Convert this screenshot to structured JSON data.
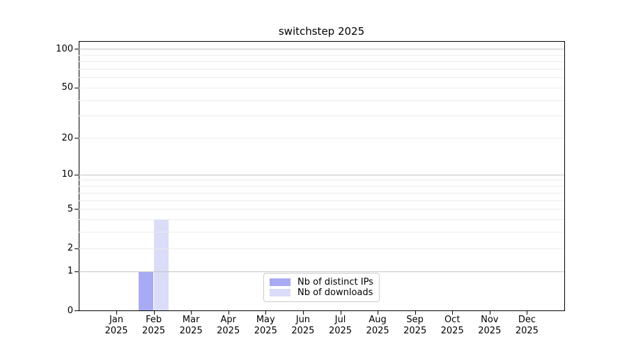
{
  "chart_data": {
    "type": "bar",
    "title": "switchstep 2025",
    "categories": [
      {
        "month": "Jan",
        "year": "2025"
      },
      {
        "month": "Feb",
        "year": "2025"
      },
      {
        "month": "Mar",
        "year": "2025"
      },
      {
        "month": "Apr",
        "year": "2025"
      },
      {
        "month": "May",
        "year": "2025"
      },
      {
        "month": "Jun",
        "year": "2025"
      },
      {
        "month": "Jul",
        "year": "2025"
      },
      {
        "month": "Aug",
        "year": "2025"
      },
      {
        "month": "Sep",
        "year": "2025"
      },
      {
        "month": "Oct",
        "year": "2025"
      },
      {
        "month": "Nov",
        "year": "2025"
      },
      {
        "month": "Dec",
        "year": "2025"
      }
    ],
    "series": [
      {
        "name": "Nb of distinct IPs",
        "color": "#a9aaf4",
        "values": [
          0,
          1,
          0,
          0,
          0,
          0,
          0,
          0,
          0,
          0,
          0,
          0
        ]
      },
      {
        "name": "Nb of downloads",
        "color": "#dbdcf8",
        "values": [
          0,
          4,
          0,
          0,
          0,
          0,
          0,
          0,
          0,
          0,
          0,
          0
        ]
      }
    ],
    "yscale": "log10(1+y)",
    "ylim": [
      0,
      114.2
    ],
    "yticks": [
      {
        "value": 0,
        "label": "0"
      },
      {
        "value": 1,
        "label": "1"
      },
      {
        "value": 2,
        "label": "2"
      },
      {
        "value": 5,
        "label": "5"
      },
      {
        "value": 10,
        "label": "10"
      },
      {
        "value": 20,
        "label": "20"
      },
      {
        "value": 50,
        "label": "50"
      },
      {
        "value": 100,
        "label": "100"
      }
    ],
    "grid": {
      "major_values": [
        1,
        10,
        100
      ],
      "minor_values": [
        2,
        3,
        4,
        5,
        6,
        7,
        8,
        9,
        20,
        30,
        40,
        50,
        60,
        70,
        80,
        90
      ]
    },
    "legend_position": "bottom-center"
  }
}
